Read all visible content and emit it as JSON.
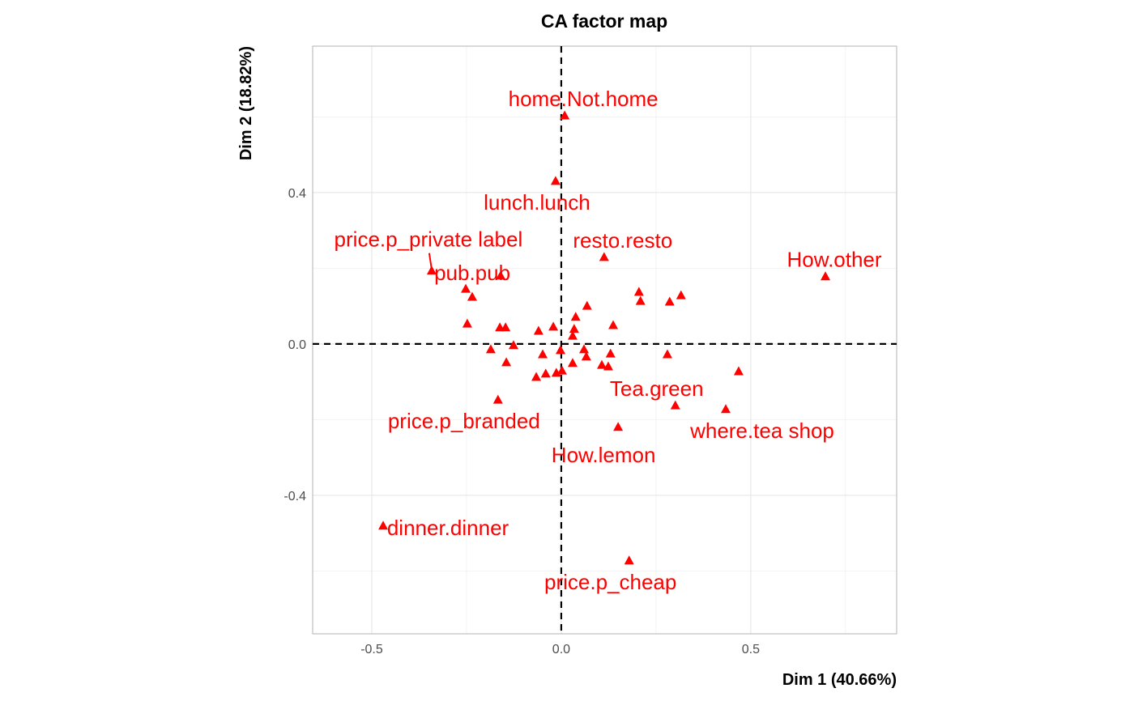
{
  "chart_data": {
    "type": "scatter",
    "title": "CA factor map",
    "xlabel": "Dim 1 (40.66%)",
    "ylabel": "Dim 2 (18.82%)",
    "xlim": [
      -0.656,
      0.885
    ],
    "ylim": [
      -0.766,
      0.787
    ],
    "xticks": [
      -0.5,
      0.0,
      0.5
    ],
    "xtick_labels": [
      "-0.5",
      "0.0",
      "0.5"
    ],
    "yticks": [
      -0.4,
      0.0,
      0.4
    ],
    "ytick_labels": [
      "-0.4",
      "0.0",
      "0.4"
    ],
    "grid": true,
    "marker": "triangle",
    "color": "#ff0000",
    "reference_lines": {
      "x": 0,
      "y": 0,
      "style": "dashed"
    },
    "points": [
      {
        "x": 0.009,
        "y": 0.603,
        "label": "home.Not.home"
      },
      {
        "x": -0.015,
        "y": 0.43,
        "label": "lunch.lunch"
      },
      {
        "x": 0.113,
        "y": 0.229,
        "label": "resto.resto"
      },
      {
        "x": 0.697,
        "y": 0.178,
        "label": "How.other"
      },
      {
        "x": -0.342,
        "y": 0.193,
        "label": "price.p_private label"
      },
      {
        "x": -0.16,
        "y": 0.18,
        "label": "pub.pub"
      },
      {
        "x": 0.301,
        "y": -0.163,
        "label": "Tea.green"
      },
      {
        "x": 0.434,
        "y": -0.173,
        "label": "where.tea shop"
      },
      {
        "x": -0.167,
        "y": -0.148,
        "label": "price.p_branded"
      },
      {
        "x": 0.15,
        "y": -0.22,
        "label": "How.lemon"
      },
      {
        "x": -0.47,
        "y": -0.481,
        "label": "dinner.dinner"
      },
      {
        "x": 0.179,
        "y": -0.573,
        "label": "price.p_cheap"
      },
      {
        "x": -0.252,
        "y": 0.145
      },
      {
        "x": -0.235,
        "y": 0.124
      },
      {
        "x": -0.248,
        "y": 0.053
      },
      {
        "x": -0.162,
        "y": 0.043
      },
      {
        "x": -0.147,
        "y": 0.043
      },
      {
        "x": -0.186,
        "y": -0.015
      },
      {
        "x": -0.126,
        "y": -0.004
      },
      {
        "x": -0.145,
        "y": -0.049
      },
      {
        "x": -0.06,
        "y": 0.034
      },
      {
        "x": -0.021,
        "y": 0.045
      },
      {
        "x": 0.038,
        "y": 0.071
      },
      {
        "x": 0.068,
        "y": 0.1
      },
      {
        "x": 0.034,
        "y": 0.039
      },
      {
        "x": 0.03,
        "y": 0.021
      },
      {
        "x": 0.137,
        "y": 0.049
      },
      {
        "x": 0.205,
        "y": 0.137
      },
      {
        "x": 0.209,
        "y": 0.113
      },
      {
        "x": 0.286,
        "y": 0.111
      },
      {
        "x": 0.316,
        "y": 0.128
      },
      {
        "x": 0.28,
        "y": -0.028
      },
      {
        "x": 0.468,
        "y": -0.073
      },
      {
        "x": -0.002,
        "y": -0.017
      },
      {
        "x": 0.06,
        "y": -0.015
      },
      {
        "x": 0.066,
        "y": -0.034
      },
      {
        "x": 0.13,
        "y": -0.026
      },
      {
        "x": 0.107,
        "y": -0.056
      },
      {
        "x": 0.124,
        "y": -0.06
      },
      {
        "x": 0.03,
        "y": -0.051
      },
      {
        "x": -0.049,
        "y": -0.028
      },
      {
        "x": -0.041,
        "y": -0.079
      },
      {
        "x": -0.066,
        "y": -0.088
      },
      {
        "x": -0.013,
        "y": -0.077
      },
      {
        "x": 0.002,
        "y": -0.071
      }
    ]
  }
}
